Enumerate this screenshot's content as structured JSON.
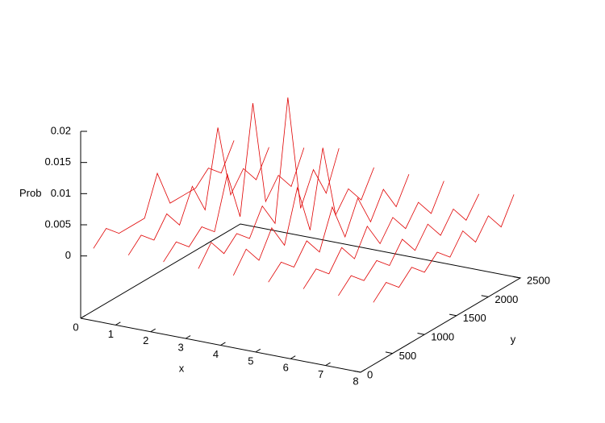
{
  "chart_data": {
    "type": "line3d",
    "x_label": "x",
    "y_label": "y",
    "z_label": "Prob",
    "y": [
      200,
      400,
      600,
      800,
      1000,
      1200,
      1400,
      1600,
      1800,
      2000,
      2200,
      2400
    ],
    "color": "#e00000",
    "series": [
      {
        "x": 0,
        "values": [
          0,
          0.002,
          0,
          0,
          0,
          0.006,
          0,
          0,
          0,
          0.002,
          0,
          0.004
        ]
      },
      {
        "x": 1,
        "values": [
          0,
          0.002,
          0,
          0.003,
          0,
          0.005,
          0,
          0.012,
          0,
          0.003,
          0,
          0.004
        ]
      },
      {
        "x": 2,
        "values": [
          0,
          0.002,
          0,
          0.002,
          0,
          0.008,
          0,
          0.017,
          0,
          0.003,
          0,
          0.005
        ]
      },
      {
        "x": 3,
        "values": [
          0,
          0.003,
          0,
          0.002,
          0,
          0.004,
          0,
          0.019,
          0,
          0.005,
          0,
          0.006
        ]
      },
      {
        "x": 4,
        "values": [
          0,
          0.003,
          0,
          0.004,
          0,
          0.008,
          0,
          0.012,
          0,
          0.003,
          0,
          0.004
        ]
      },
      {
        "x": 5,
        "values": [
          0,
          0.002,
          0,
          0.003,
          0,
          0.006,
          0,
          0.005,
          0,
          0.004,
          0,
          0.004
        ]
      },
      {
        "x": 6,
        "values": [
          0,
          0.002,
          0,
          0.003,
          0,
          0.004,
          0,
          0.003,
          0,
          0.003,
          0,
          0.004
        ]
      },
      {
        "x": 7,
        "values": [
          0,
          0.002,
          0,
          0.002,
          0,
          0.003,
          0,
          0.003,
          0,
          0.003,
          0,
          0.003
        ]
      },
      {
        "x": 8,
        "values": [
          0,
          0.002,
          0,
          0.002,
          0,
          0.002,
          0,
          0.003,
          0,
          0.003,
          0,
          0.004
        ]
      }
    ],
    "xlim": [
      0,
      8
    ],
    "xticks": [
      0,
      1,
      2,
      3,
      4,
      5,
      6,
      7,
      8
    ],
    "ylim": [
      0,
      2500
    ],
    "yticks": [
      0,
      500,
      1000,
      1500,
      2000,
      2500
    ],
    "zlim": [
      -0.01,
      0.02
    ],
    "zticks": [
      0,
      0.005,
      0.01,
      0.015,
      0.02
    ]
  }
}
